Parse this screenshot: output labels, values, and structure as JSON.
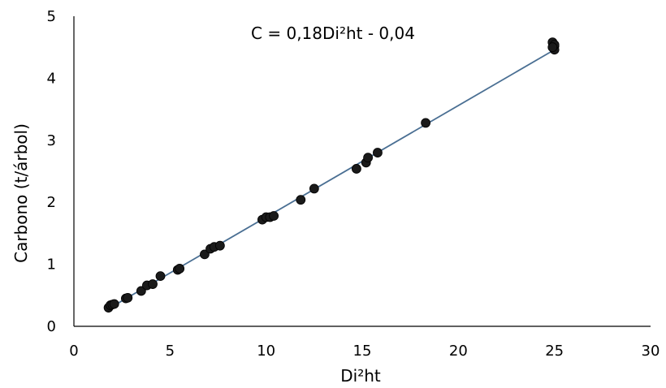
{
  "chart_data": {
    "type": "scatter",
    "title": "",
    "annotation": "C = 0,18Di²ht - 0,04",
    "xlabel": "Di²ht",
    "ylabel": "Carbono (t/árbol)",
    "xlim": [
      0,
      30
    ],
    "ylim": [
      0,
      5
    ],
    "x_ticks": [
      "0",
      "5",
      "10",
      "15",
      "20",
      "25",
      "30"
    ],
    "y_ticks": [
      "0",
      "1",
      "2",
      "3",
      "4",
      "5"
    ],
    "grid": false,
    "legend": "none",
    "trendline": {
      "slope": 0.18,
      "intercept": -0.04,
      "x_range": [
        1.8,
        25.0
      ]
    },
    "series": [
      {
        "x": [
          1.8,
          1.9,
          2.0,
          2.1,
          2.7,
          2.8,
          3.5,
          3.8,
          4.1,
          4.5,
          5.4,
          5.5,
          6.8,
          7.1,
          7.3,
          7.6,
          9.8,
          10.0,
          10.2,
          10.4,
          11.8,
          12.5,
          14.7,
          15.2,
          15.3,
          15.8,
          18.3,
          24.9,
          25.0,
          25.0,
          25.0,
          24.9
        ],
        "y": [
          0.3,
          0.34,
          0.35,
          0.36,
          0.45,
          0.46,
          0.57,
          0.66,
          0.68,
          0.81,
          0.91,
          0.93,
          1.16,
          1.25,
          1.28,
          1.3,
          1.72,
          1.76,
          1.76,
          1.78,
          2.04,
          2.22,
          2.54,
          2.64,
          2.72,
          2.8,
          3.28,
          4.58,
          4.52,
          4.46,
          4.54,
          4.5
        ]
      }
    ],
    "colors": {
      "points": "#1a1a1a",
      "trendline": "#4a6f93",
      "axes": "#000000"
    }
  }
}
